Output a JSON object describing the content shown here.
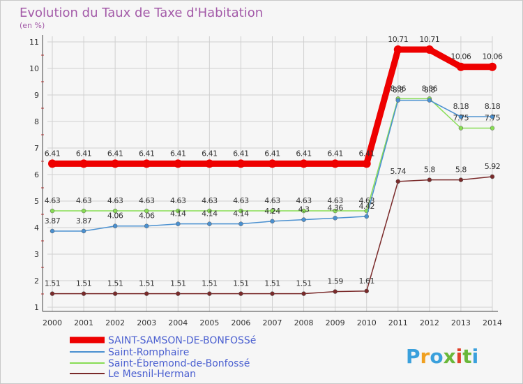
{
  "chart_data": {
    "type": "line",
    "title": "Evolution du Taux de Taxe d'Habitation",
    "subtitle": "(en %)",
    "x": [
      "2000",
      "2001",
      "2002",
      "2003",
      "2004",
      "2005",
      "2006",
      "2007",
      "2008",
      "2009",
      "2010",
      "2011",
      "2012",
      "2013",
      "2014"
    ],
    "yticks": [
      "1",
      "2",
      "3",
      "4",
      "5",
      "6",
      "7",
      "8",
      "9",
      "10",
      "11"
    ],
    "ylim": [
      1,
      11
    ],
    "grid": true,
    "legend_position": "bottom-left",
    "series": [
      {
        "name": "SAINT-SAMSON-DE-BONFOSSé",
        "color": "#ee0000",
        "values": [
          6.41,
          6.41,
          6.41,
          6.41,
          6.41,
          6.41,
          6.41,
          6.41,
          6.41,
          6.41,
          6.41,
          10.71,
          10.71,
          10.06,
          10.06
        ],
        "labels": [
          "6.41",
          "6.41",
          "6.41",
          "6.41",
          "6.41",
          "6.41",
          "6.41",
          "6.41",
          "6.41",
          "6.41",
          "6.41",
          "10.71",
          "10.71",
          "10.06",
          "10.06"
        ]
      },
      {
        "name": "Saint-Romphaire",
        "color": "#4a90d0",
        "values": [
          3.87,
          3.87,
          4.06,
          4.06,
          4.14,
          4.14,
          4.14,
          4.24,
          4.3,
          4.36,
          4.42,
          8.8,
          8.8,
          8.18,
          8.18
        ],
        "labels": [
          "3.87",
          "3.87",
          "4.06",
          "4.06",
          "4.14",
          "4.14",
          "4.14",
          "4.24",
          "4.3",
          "4.36",
          "4.42",
          "8.8",
          "8.8",
          "8.18",
          "8.18"
        ]
      },
      {
        "name": "Saint-Ébremond-de-Bonfossé",
        "color": "#88dd55",
        "values": [
          4.63,
          4.63,
          4.63,
          4.63,
          4.63,
          4.63,
          4.63,
          4.63,
          4.63,
          4.63,
          4.63,
          8.86,
          8.86,
          7.75,
          7.75
        ],
        "labels": [
          "4.63",
          "4.63",
          "4.63",
          "4.63",
          "4.63",
          "4.63",
          "4.63",
          "4.63",
          "4.63",
          "4.63",
          "4.63",
          "8.86",
          "8.86",
          "7.75",
          "7.75"
        ]
      },
      {
        "name": "Le Mesnil-Herman",
        "color": "#7a2a2a",
        "values": [
          1.51,
          1.51,
          1.51,
          1.51,
          1.51,
          1.51,
          1.51,
          1.51,
          1.51,
          1.59,
          1.61,
          5.74,
          5.8,
          5.8,
          5.92
        ],
        "labels": [
          "1.51",
          "1.51",
          "1.51",
          "1.51",
          "1.51",
          "1.51",
          "1.51",
          "1.51",
          "1.51",
          "1.59",
          "1.61",
          "5.74",
          "5.8",
          "5.8",
          "5.92"
        ]
      }
    ]
  },
  "brand": {
    "text": "Proxiti",
    "colors": [
      "#3aa0dc",
      "#f0a020",
      "#3aa0dc",
      "#6ab83a",
      "#e0402a",
      "#6ab83a",
      "#3aa0dc"
    ]
  }
}
